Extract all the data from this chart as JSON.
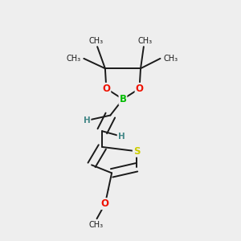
{
  "bg_color": "#eeeeee",
  "bond_color": "#1a1a1a",
  "bond_width": 1.4,
  "atoms": {
    "B": {
      "color": "#00bb00",
      "size": 8.5
    },
    "O": {
      "color": "#ee1100",
      "size": 8.5
    },
    "S": {
      "color": "#cccc00",
      "size": 8.5
    },
    "H": {
      "color": "#448888",
      "size": 7.5
    },
    "methyl": {
      "color": "#1a1a1a",
      "size": 7.0
    },
    "methoxy_O": {
      "color": "#ee1100",
      "size": 8.5
    }
  },
  "figsize": [
    3.0,
    3.0
  ],
  "dpi": 100,
  "xlim": [
    0.0,
    1.0
  ],
  "ylim": [
    0.0,
    1.0
  ]
}
